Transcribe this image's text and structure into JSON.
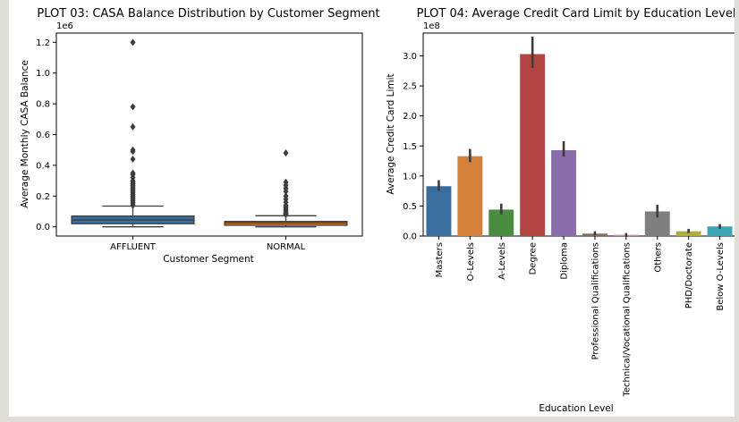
{
  "chart_data": [
    {
      "type": "box",
      "title": "PLOT 03: CASA Balance Distribution by Customer Segment",
      "xlabel": "Customer Segment",
      "ylabel": "Average Monthly CASA Balance",
      "y_offset_label": "1e6",
      "ylim": [
        -0.06,
        1.26
      ],
      "y_unit_scale": 1000000,
      "yticks": [
        0.0,
        0.2,
        0.4,
        0.6,
        0.8,
        1.0,
        1.2
      ],
      "ytick_labels": [
        "0.0",
        "0.2",
        "0.4",
        "0.6",
        "0.8",
        "1.0",
        "1.2"
      ],
      "categories": [
        "AFFLUENT",
        "NORMAL"
      ],
      "colors": [
        "#3a6e9f",
        "#cc7e33"
      ],
      "boxes": [
        {
          "name": "AFFLUENT",
          "whisker_low": 0.0,
          "q1": 0.02,
          "median": 0.045,
          "q3": 0.07,
          "whisker_high": 0.135,
          "outliers": [
            1.2,
            0.78,
            0.65,
            0.5,
            0.49,
            0.44,
            0.35,
            0.34,
            0.32,
            0.3,
            0.29,
            0.28,
            0.27,
            0.26,
            0.25,
            0.24,
            0.23,
            0.22,
            0.21,
            0.2,
            0.19,
            0.18,
            0.17,
            0.16,
            0.15,
            0.14
          ]
        },
        {
          "name": "NORMAL",
          "whisker_low": 0.0,
          "q1": 0.01,
          "median": 0.025,
          "q3": 0.035,
          "whisker_high": 0.072,
          "outliers": [
            0.48,
            0.29,
            0.27,
            0.25,
            0.23,
            0.2,
            0.18,
            0.16,
            0.14,
            0.13,
            0.12,
            0.11,
            0.1,
            0.09,
            0.085,
            0.08
          ]
        }
      ]
    },
    {
      "type": "bar",
      "title": "PLOT 04: Average Credit Card Limit by Education Level",
      "xlabel": "Education Level",
      "ylabel": "Average Credit Card Limit",
      "y_offset_label": "1e8",
      "ylim": [
        0,
        3.38
      ],
      "y_unit_scale": 100000000,
      "yticks": [
        0.0,
        0.5,
        1.0,
        1.5,
        2.0,
        2.5,
        3.0
      ],
      "ytick_labels": [
        "0.0",
        "0.5",
        "1.0",
        "1.5",
        "2.0",
        "2.5",
        "3.0"
      ],
      "categories": [
        "Masters",
        "O-Levels",
        "A-Levels",
        "Degree",
        "Diploma",
        "Professional Qualifications",
        "Technical/Vocational Qualifications",
        "Others",
        "PHD/Doctorate",
        "Below O-Levels"
      ],
      "values": [
        0.83,
        1.33,
        0.44,
        3.03,
        1.43,
        0.04,
        0.02,
        0.41,
        0.08,
        0.16
      ],
      "error_low": [
        0.75,
        1.23,
        0.36,
        2.8,
        1.32,
        0.01,
        0.0,
        0.31,
        0.05,
        0.12
      ],
      "error_high": [
        0.93,
        1.45,
        0.54,
        3.32,
        1.58,
        0.08,
        0.05,
        0.52,
        0.12,
        0.2
      ],
      "colors": [
        "#3a6e9f",
        "#d5813a",
        "#4a8d41",
        "#b24542",
        "#8a6eab",
        "#8c6a58",
        "#cf84b7",
        "#7f7f7f",
        "#aeae3a",
        "#3ea5b8"
      ]
    }
  ]
}
